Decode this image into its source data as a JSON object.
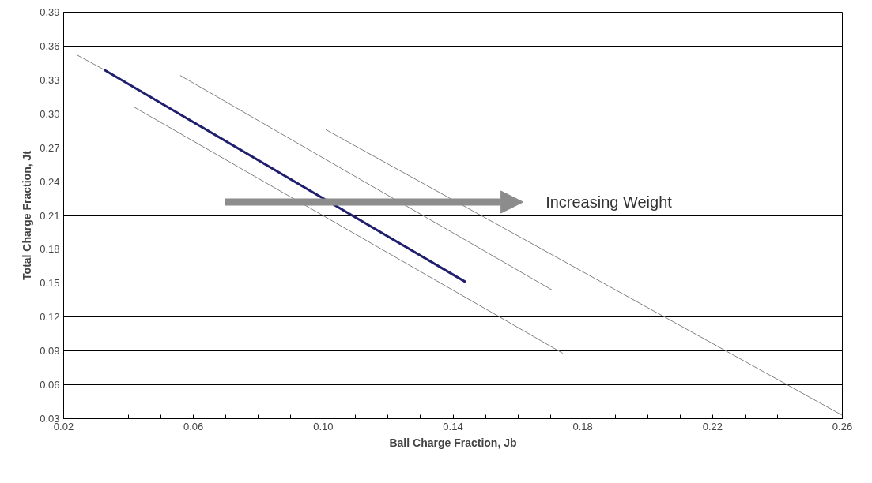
{
  "chart_data": {
    "type": "line",
    "xlabel": "Ball Charge Fraction, Jb",
    "ylabel": "Total Charge Fraction, Jt",
    "annotations": [
      "Increasing Weight"
    ],
    "series": [
      {
        "color": "#808080",
        "x": [
          0.0242,
          0.0325
        ],
        "values": [
          0.352,
          0.339
        ]
      },
      {
        "color": "#1f1f6e",
        "x": [
          0.0325,
          0.1439
        ],
        "values": [
          0.339,
          0.151
        ]
      },
      {
        "color": "#808080",
        "x": [
          0.0417,
          0.1738
        ],
        "values": [
          0.306,
          0.088
        ]
      },
      {
        "color": "#808080",
        "x": [
          0.0559,
          0.1705
        ],
        "values": [
          0.334,
          0.144
        ]
      },
      {
        "color": "#808080",
        "x": [
          0.1008,
          0.26
        ],
        "values": [
          0.286,
          0.033
        ]
      }
    ],
    "xlim": [
      0.02,
      0.26
    ],
    "xticks": [
      0.02,
      {
        "value": 0.03,
        "label": null
      },
      {
        "value": 0.04,
        "label": null
      },
      {
        "value": 0.05,
        "label": null
      },
      0.06,
      {
        "value": 0.07,
        "label": null
      },
      {
        "value": 0.08,
        "label": null
      },
      {
        "value": 0.09,
        "label": null
      },
      {
        "value": 0.1,
        "label": "0.10"
      },
      {
        "value": 0.11,
        "label": null
      },
      {
        "value": 0.12,
        "label": null
      },
      {
        "value": 0.13,
        "label": null
      },
      0.14,
      {
        "value": 0.15,
        "label": null
      },
      {
        "value": 0.16,
        "label": null
      },
      {
        "value": 0.17,
        "label": null
      },
      0.18,
      {
        "value": 0.19,
        "label": null
      },
      {
        "value": 0.2,
        "label": null
      },
      {
        "value": 0.21,
        "label": null
      },
      0.22,
      {
        "value": 0.23,
        "label": null
      },
      {
        "value": 0.24,
        "label": null
      },
      {
        "value": 0.25,
        "label": null
      },
      0.26
    ],
    "ylim": [
      0.03,
      0.39
    ],
    "yticks": [
      0.03,
      0.06,
      0.09,
      0.12,
      0.15,
      0.18,
      0.21,
      0.24,
      0.27,
      {
        "value": 0.3,
        "label": "0.30"
      },
      0.33,
      0.36,
      0.39
    ],
    "grid": "y",
    "line_style": "solid",
    "marker": "none"
  }
}
